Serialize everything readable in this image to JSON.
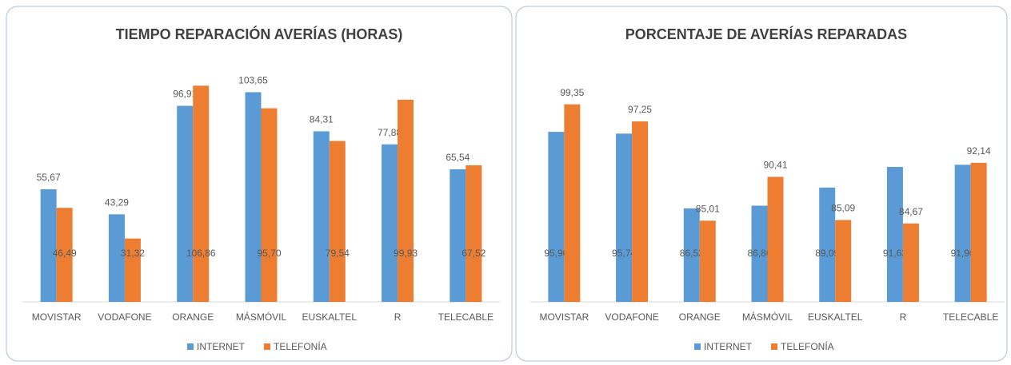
{
  "chart_data": [
    {
      "type": "bar",
      "title": "TIEMPO REPARACIÓN AVERÍAS (HORAS)",
      "categories": [
        "MOVISTAR",
        "VODAFONE",
        "ORANGE",
        "MÁSMÓVIL",
        "EUSKALTEL",
        "R",
        "TELECABLE"
      ],
      "series": [
        {
          "name": "INTERNET",
          "color": "#5b9bd5",
          "values": [
            55.67,
            43.29,
            96.91,
            103.65,
            84.31,
            77.88,
            65.54
          ],
          "value_labels": [
            "55,67",
            "43,29",
            "96,91",
            "103,65",
            "84,31",
            "77,88",
            "65,54"
          ]
        },
        {
          "name": "TELEFONÍA",
          "color": "#ed7d31",
          "values": [
            46.49,
            31.32,
            106.86,
            95.7,
            79.54,
            99.93,
            67.52
          ],
          "value_labels": [
            "46,49",
            "31,32",
            "106,86",
            "95,70",
            "79,54",
            "99,93",
            "67,52"
          ]
        }
      ],
      "ylim": [
        0,
        120
      ]
    },
    {
      "type": "bar",
      "title": "PORCENTAJE DE AVERÍAS REPARADAS",
      "categories": [
        "MOVISTAR",
        "VODAFONE",
        "ORANGE",
        "MÁSMÓVIL",
        "EUSKALTEL",
        "R",
        "TELECABLE"
      ],
      "series": [
        {
          "name": "INTERNET",
          "color": "#5b9bd5",
          "values": [
            95.96,
            95.74,
            86.53,
            86.86,
            89.09,
            91.63,
            91.9
          ],
          "value_labels": [
            "95,96",
            "95,74",
            "86,53",
            "86,86",
            "89,09",
            "91,63",
            "91,90"
          ]
        },
        {
          "name": "TELEFONÍA",
          "color": "#ed7d31",
          "values": [
            99.35,
            97.25,
            85.01,
            90.41,
            85.09,
            84.67,
            92.14
          ],
          "value_labels": [
            "99,35",
            "97,25",
            "85,01",
            "90,41",
            "85,09",
            "84,67",
            "92,14"
          ]
        }
      ],
      "ylim": [
        75,
        100
      ]
    }
  ]
}
